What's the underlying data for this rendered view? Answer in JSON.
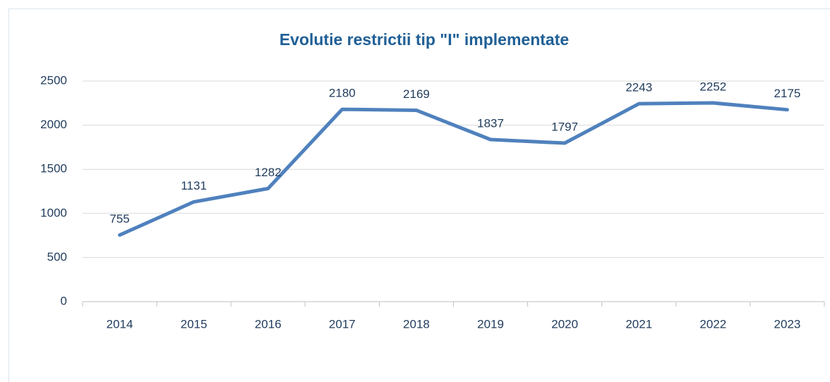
{
  "chart_data": {
    "type": "line",
    "title": "Evolutie restrictii  tip \"I\" implementate",
    "categories": [
      "2014",
      "2015",
      "2016",
      "2017",
      "2018",
      "2019",
      "2020",
      "2021",
      "2022",
      "2023"
    ],
    "series": [
      {
        "name": "Restrictii tip I",
        "color": "#4f81bd",
        "values": [
          755,
          1131,
          1282,
          2180,
          2169,
          1837,
          1797,
          2243,
          2252,
          2175
        ]
      }
    ],
    "ylim": [
      0,
      2500
    ],
    "yticks": [
      0,
      500,
      1000,
      1500,
      2000,
      2500
    ],
    "grid": true,
    "data_labels": true
  }
}
